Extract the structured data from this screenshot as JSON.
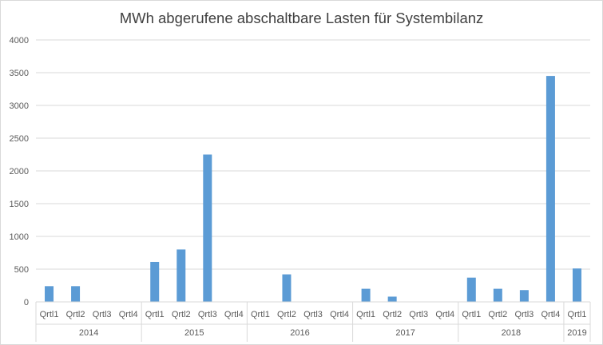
{
  "chart_data": {
    "type": "bar",
    "title": "MWh abgerufene abschaltbare Lasten für Systembilanz",
    "xlabel": "",
    "ylabel": "",
    "ylim": [
      0,
      4000
    ],
    "yticks": [
      0,
      500,
      1000,
      1500,
      2000,
      2500,
      3000,
      3500,
      4000
    ],
    "grid": true,
    "legend": "none",
    "bar_color": "#5b9bd5",
    "categories": [
      "Qrtl1",
      "Qrtl2",
      "Qrtl3",
      "Qrtl4",
      "Qrtl1",
      "Qrtl2",
      "Qrtl3",
      "Qrtl4",
      "Qrtl1",
      "Qrtl2",
      "Qrtl3",
      "Qrtl4",
      "Qrtl1",
      "Qrtl2",
      "Qrtl3",
      "Qrtl4",
      "Qrtl1",
      "Qrtl2",
      "Qrtl3",
      "Qrtl4",
      "Qrtl1"
    ],
    "groups": [
      {
        "label": "2014",
        "count": 4
      },
      {
        "label": "2015",
        "count": 4
      },
      {
        "label": "2016",
        "count": 4
      },
      {
        "label": "2017",
        "count": 4
      },
      {
        "label": "2018",
        "count": 4
      },
      {
        "label": "2019",
        "count": 1
      }
    ],
    "values": [
      240,
      240,
      0,
      0,
      610,
      800,
      2250,
      0,
      0,
      420,
      0,
      0,
      200,
      80,
      0,
      0,
      370,
      200,
      180,
      3450,
      510
    ]
  }
}
